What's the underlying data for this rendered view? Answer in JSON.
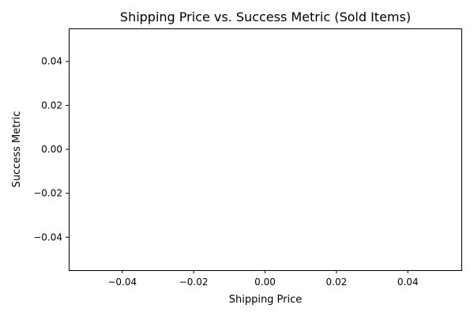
{
  "chart_data": {
    "type": "scatter",
    "title": "Shipping Price vs. Success Metric (Sold Items)",
    "xlabel": "Shipping Price",
    "ylabel": "Success Metric",
    "xlim": [
      -0.055,
      0.055
    ],
    "ylim": [
      -0.055,
      0.055
    ],
    "x_ticks": [
      -0.04,
      -0.02,
      0.0,
      0.02,
      0.04
    ],
    "x_tick_labels": [
      "−0.04",
      "−0.02",
      "0.00",
      "0.02",
      "0.04"
    ],
    "y_ticks": [
      -0.04,
      -0.02,
      0.0,
      0.02,
      0.04
    ],
    "y_tick_labels": [
      "−0.04",
      "−0.02",
      "0.00",
      "0.02",
      "0.04"
    ],
    "grid": false,
    "series": [
      {
        "x": [],
        "y": []
      }
    ]
  }
}
